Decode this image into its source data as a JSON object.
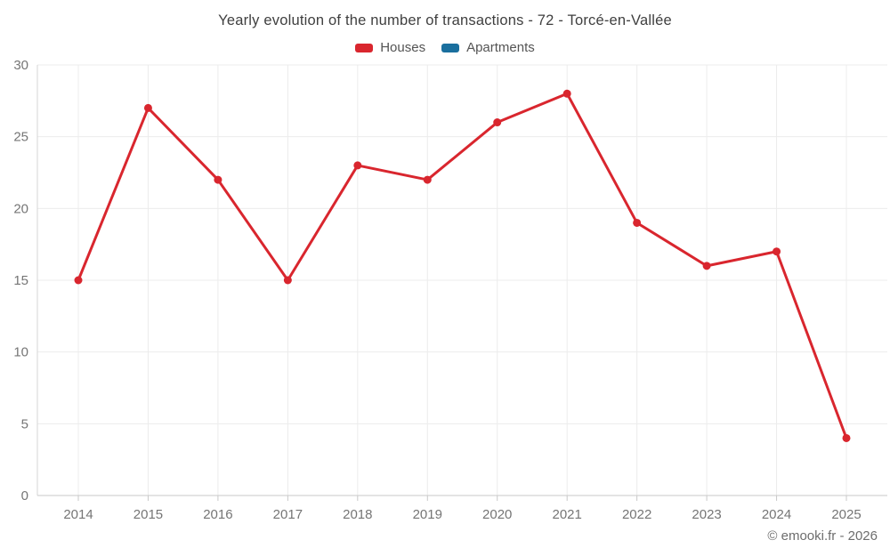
{
  "title": "Yearly evolution of the number of transactions - 72 - Torcé-en-Vallée",
  "legend": {
    "items": [
      {
        "label": "Houses",
        "color": "#d9262e"
      },
      {
        "label": "Apartments",
        "color": "#1a6f9e"
      }
    ]
  },
  "copyright": "© emooki.fr - 2026",
  "colors": {
    "houses_red": "#d9262e",
    "apartments_blue": "#1a6f9e",
    "gridline": "#ececec",
    "axis_line": "#c9c9c9",
    "axis_label": "#757575",
    "title_text": "#3f3f3f",
    "background": "#ffffff"
  },
  "chart_data": {
    "type": "line",
    "title": "Yearly evolution of the number of transactions - 72 - Torcé-en-Vallée",
    "categories": [
      "2014",
      "2015",
      "2016",
      "2017",
      "2018",
      "2019",
      "2020",
      "2021",
      "2022",
      "2023",
      "2024",
      "2025"
    ],
    "series": [
      {
        "name": "Houses",
        "color": "#d9262e",
        "values": [
          15,
          27,
          22,
          15,
          23,
          22,
          26,
          28,
          19,
          16,
          17,
          4
        ]
      },
      {
        "name": "Apartments",
        "color": "#1a6f9e",
        "values": []
      }
    ],
    "xlabel": "",
    "ylabel": "",
    "ylim": [
      0,
      30
    ],
    "y_ticks": [
      0,
      5,
      10,
      15,
      20,
      25,
      30
    ],
    "grid": true,
    "legend_position": "top",
    "marker_radius": 4.5,
    "line_width": 3
  }
}
